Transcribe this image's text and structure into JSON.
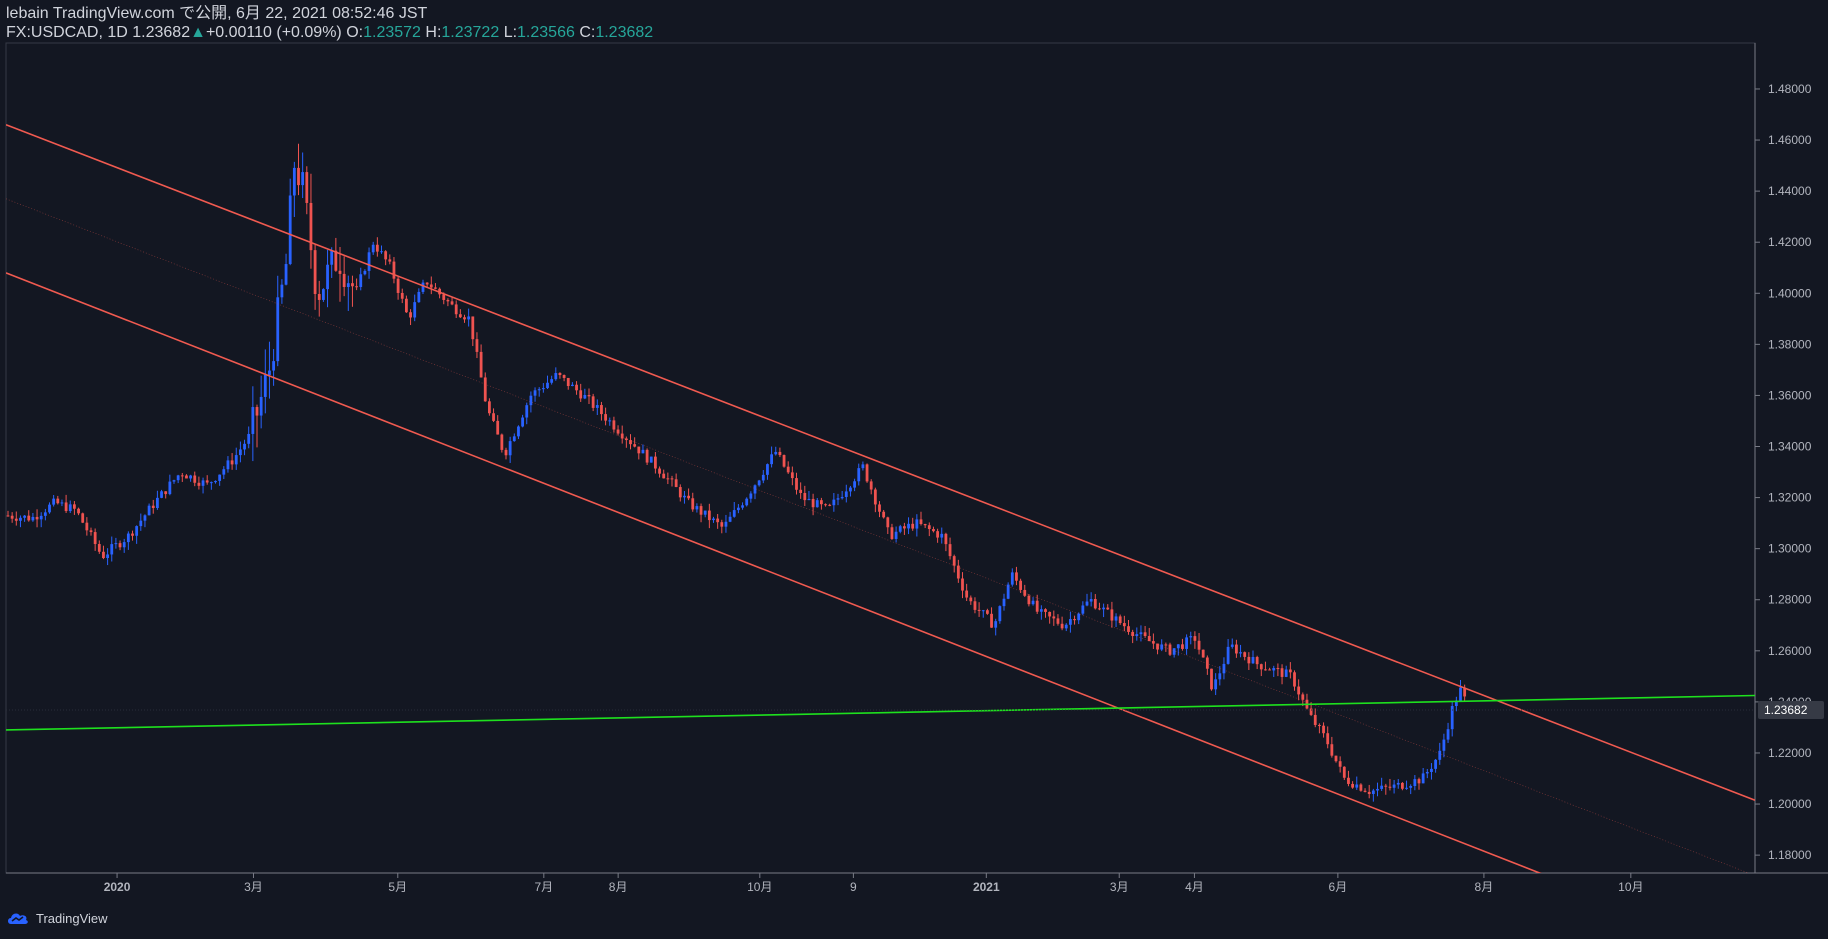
{
  "header": {
    "publisher": "lebain TradingView.com で公開, 6月 22, 2021 08:52:46 JST",
    "symbol": "FX:USDCAD, 1D",
    "last": "1.23682",
    "change": "+0.00110 (+0.09%)",
    "o_label": "O:",
    "o_value": "1.23572",
    "h_label": "H:",
    "h_value": "1.23722",
    "l_label": "L:",
    "l_value": "1.23566",
    "c_label": "C:",
    "c_value": "1.23682"
  },
  "branding": {
    "name": "TradingView"
  },
  "colors": {
    "background": "#131722",
    "up": "#2962ff",
    "down": "#ef5350",
    "channel": "#f05a50",
    "trendline": "#1ee01e",
    "axis_text": "#b2b5be",
    "price_label_bg": "#363a45"
  },
  "chart_data": {
    "type": "candlestick",
    "symbol": "FX:USDCAD",
    "interval": "1D",
    "ylim": [
      1.173,
      1.498
    ],
    "y_ticks": [
      "1.48000",
      "1.46000",
      "1.44000",
      "1.42000",
      "1.40000",
      "1.38000",
      "1.36000",
      "1.34000",
      "1.32000",
      "1.30000",
      "1.28000",
      "1.26000",
      "1.24000",
      "1.22000",
      "1.20000",
      "1.18000"
    ],
    "current_price_label": "1.23682",
    "x_ticks": [
      "2020",
      "3月",
      "5月",
      "7月",
      "8月",
      "10月",
      "9",
      "2021",
      "3月",
      "4月",
      "6月",
      "8月",
      "10月"
    ],
    "price_path": [
      [
        0,
        1.313
      ],
      [
        0.015,
        1.312
      ],
      [
        0.028,
        1.318
      ],
      [
        0.04,
        1.315
      ],
      [
        0.055,
        1.297
      ],
      [
        0.07,
        1.305
      ],
      [
        0.085,
        1.318
      ],
      [
        0.1,
        1.33
      ],
      [
        0.115,
        1.325
      ],
      [
        0.13,
        1.335
      ],
      [
        0.14,
        1.345
      ],
      [
        0.15,
        1.368
      ],
      [
        0.16,
        1.41
      ],
      [
        0.165,
        1.452
      ],
      [
        0.17,
        1.44
      ],
      [
        0.178,
        1.4
      ],
      [
        0.19,
        1.415
      ],
      [
        0.2,
        1.4
      ],
      [
        0.21,
        1.42
      ],
      [
        0.22,
        1.41
      ],
      [
        0.23,
        1.39
      ],
      [
        0.24,
        1.405
      ],
      [
        0.255,
        1.395
      ],
      [
        0.265,
        1.39
      ],
      [
        0.275,
        1.355
      ],
      [
        0.285,
        1.337
      ],
      [
        0.3,
        1.36
      ],
      [
        0.315,
        1.368
      ],
      [
        0.33,
        1.36
      ],
      [
        0.345,
        1.35
      ],
      [
        0.36,
        1.34
      ],
      [
        0.375,
        1.33
      ],
      [
        0.39,
        1.318
      ],
      [
        0.41,
        1.308
      ],
      [
        0.425,
        1.322
      ],
      [
        0.44,
        1.338
      ],
      [
        0.455,
        1.32
      ],
      [
        0.47,
        1.315
      ],
      [
        0.49,
        1.332
      ],
      [
        0.505,
        1.305
      ],
      [
        0.52,
        1.31
      ],
      [
        0.535,
        1.305
      ],
      [
        0.55,
        1.28
      ],
      [
        0.565,
        1.27
      ],
      [
        0.575,
        1.29
      ],
      [
        0.59,
        1.275
      ],
      [
        0.605,
        1.27
      ],
      [
        0.62,
        1.28
      ],
      [
        0.635,
        1.272
      ],
      [
        0.65,
        1.265
      ],
      [
        0.665,
        1.26
      ],
      [
        0.68,
        1.265
      ],
      [
        0.69,
        1.245
      ],
      [
        0.7,
        1.262
      ],
      [
        0.715,
        1.255
      ],
      [
        0.735,
        1.25
      ],
      [
        0.745,
        1.235
      ],
      [
        0.755,
        1.225
      ],
      [
        0.765,
        1.21
      ],
      [
        0.78,
        1.205
      ],
      [
        0.795,
        1.207
      ],
      [
        0.81,
        1.21
      ],
      [
        0.82,
        1.22
      ],
      [
        0.828,
        1.24
      ],
      [
        0.832,
        1.245
      ],
      [
        0.836,
        1.2368
      ]
    ],
    "x_range_days": 695,
    "price_start_day": 0,
    "price_end_day": 576,
    "lines": [
      {
        "name": "channel-upper",
        "x1_day": 0,
        "y1": 1.466,
        "x2_day": 695,
        "y2": 1.2015
      },
      {
        "name": "channel-middle",
        "x1_day": 0,
        "y1": 1.437,
        "x2_day": 695,
        "y2": 1.172
      },
      {
        "name": "channel-lower",
        "x1_day": 0,
        "y1": 1.408,
        "x2_day": 695,
        "y2": 1.14
      },
      {
        "name": "green-trendline",
        "x1_day": 0,
        "y1": 1.229,
        "x2_day": 695,
        "y2": 1.2425
      }
    ]
  }
}
